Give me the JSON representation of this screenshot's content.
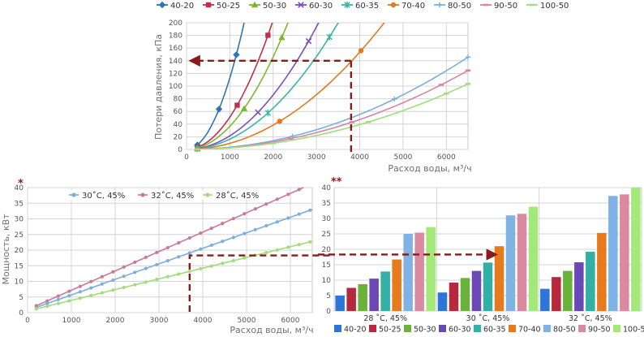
{
  "chart_data": [
    {
      "id": "pressure-loss",
      "type": "line",
      "xlabel": "Расход воды, м³/ч",
      "ylabel": "Потери давления, кПа",
      "xlim": [
        0,
        6500
      ],
      "ylim": [
        0,
        200
      ],
      "xticks": [
        0,
        1000,
        2000,
        3000,
        4000,
        5000,
        6000
      ],
      "yticks": [
        0,
        20,
        40,
        60,
        80,
        100,
        120,
        140,
        160,
        180,
        200
      ],
      "grid": true,
      "legend_position": "top",
      "series": [
        {
          "name": "40-20",
          "color": "#2e75b6",
          "marker": "diamond",
          "k": 113,
          "x": [
            250,
            750,
            1150
          ]
        },
        {
          "name": "50-25",
          "color": "#c0304a",
          "marker": "square",
          "k": 51,
          "x": [
            250,
            1170,
            1880
          ]
        },
        {
          "name": "50-30",
          "color": "#7cb82f",
          "marker": "triangle",
          "k": 36.5,
          "x": [
            250,
            1330,
            2200
          ]
        },
        {
          "name": "60-30",
          "color": "#7a4fc0",
          "marker": "x",
          "k": 21.5,
          "x": [
            250,
            1650,
            2820
          ]
        },
        {
          "name": "60-35",
          "color": "#36b5a8",
          "marker": "asterisk",
          "k": 16.3,
          "x": [
            250,
            1880,
            3300
          ]
        },
        {
          "name": "70-40",
          "color": "#e07a23",
          "marker": "circle",
          "k": 9.6,
          "x": [
            250,
            2150,
            4030
          ]
        },
        {
          "name": "80-50",
          "color": "#7aafe0",
          "marker": "plus",
          "k": 3.45,
          "x": [
            250,
            2450,
            4800,
            6500
          ]
        },
        {
          "name": "90-50",
          "color": "#d9859f",
          "marker": "dash",
          "k": 2.95,
          "x": [
            250,
            2400,
            3820,
            5880,
            6500
          ]
        },
        {
          "name": "100-50",
          "color": "#9fde7a",
          "marker": "dash",
          "k": 2.45,
          "x": [
            250,
            2000,
            4200,
            6000,
            6500
          ]
        }
      ],
      "annotation": {
        "x": 3800,
        "y": 140,
        "color": "#8b1a1a"
      }
    },
    {
      "id": "power-vs-flow",
      "type": "line",
      "marker_label": "*",
      "xlabel": "Расход воды, м³/ч",
      "ylabel": "Мощность, кВт",
      "xlim": [
        0,
        6500
      ],
      "ylim": [
        0,
        40
      ],
      "xticks": [
        0,
        1000,
        2000,
        3000,
        4000,
        5000,
        6000
      ],
      "yticks": [
        0,
        5,
        10,
        15,
        20,
        25,
        30,
        35,
        40
      ],
      "grid": true,
      "legend_position": "top",
      "series": [
        {
          "name": "30˚C, 45%",
          "color": "#7aafe0",
          "x": [
            200,
            6500
          ],
          "y": [
            1.7,
            33.0
          ]
        },
        {
          "name": "32˚C, 45%",
          "color": "#c97a98",
          "x": [
            200,
            6300
          ],
          "y": [
            2.2,
            40.0
          ]
        },
        {
          "name": "28˚C, 45%",
          "color": "#9fde7a",
          "x": [
            200,
            6500
          ],
          "y": [
            1.2,
            22.8
          ]
        }
      ],
      "annotation": {
        "x": 3700,
        "y": 18.3,
        "color": "#8b1a1a"
      }
    },
    {
      "id": "power-by-model",
      "type": "bar",
      "marker_label": "**",
      "ylim": [
        0,
        40
      ],
      "yticks": [
        0,
        5,
        10,
        15,
        20,
        25,
        30,
        35,
        40
      ],
      "grid": true,
      "legend_position": "bottom",
      "categories": [
        "28 ˚C, 45%",
        "30 ˚C, 45%",
        "32 ˚C, 45%"
      ],
      "series": [
        {
          "name": "40-20",
          "color": "#2e75d9",
          "values": [
            5.0,
            6.0,
            7.2
          ]
        },
        {
          "name": "50-25",
          "color": "#b8283c",
          "values": [
            7.5,
            9.2,
            11.0
          ]
        },
        {
          "name": "50-30",
          "color": "#6bb23a",
          "values": [
            8.7,
            10.7,
            13.0
          ]
        },
        {
          "name": "60-30",
          "color": "#6a48b5",
          "values": [
            10.5,
            13.0,
            15.8
          ]
        },
        {
          "name": "60-35",
          "color": "#32b0a5",
          "values": [
            12.8,
            15.7,
            19.2
          ]
        },
        {
          "name": "70-40",
          "color": "#e87a1e",
          "values": [
            16.7,
            21.0,
            25.3
          ]
        },
        {
          "name": "80-50",
          "color": "#7fb2e5",
          "values": [
            25.0,
            31.0,
            37.3
          ]
        },
        {
          "name": "90-50",
          "color": "#d98aa0",
          "values": [
            25.4,
            31.5,
            37.8
          ]
        },
        {
          "name": "100-50",
          "color": "#a4e87a",
          "values": [
            27.2,
            33.8,
            40.0
          ]
        }
      ],
      "annotation": {
        "y": 18.3,
        "color": "#8b1a1a"
      }
    }
  ]
}
